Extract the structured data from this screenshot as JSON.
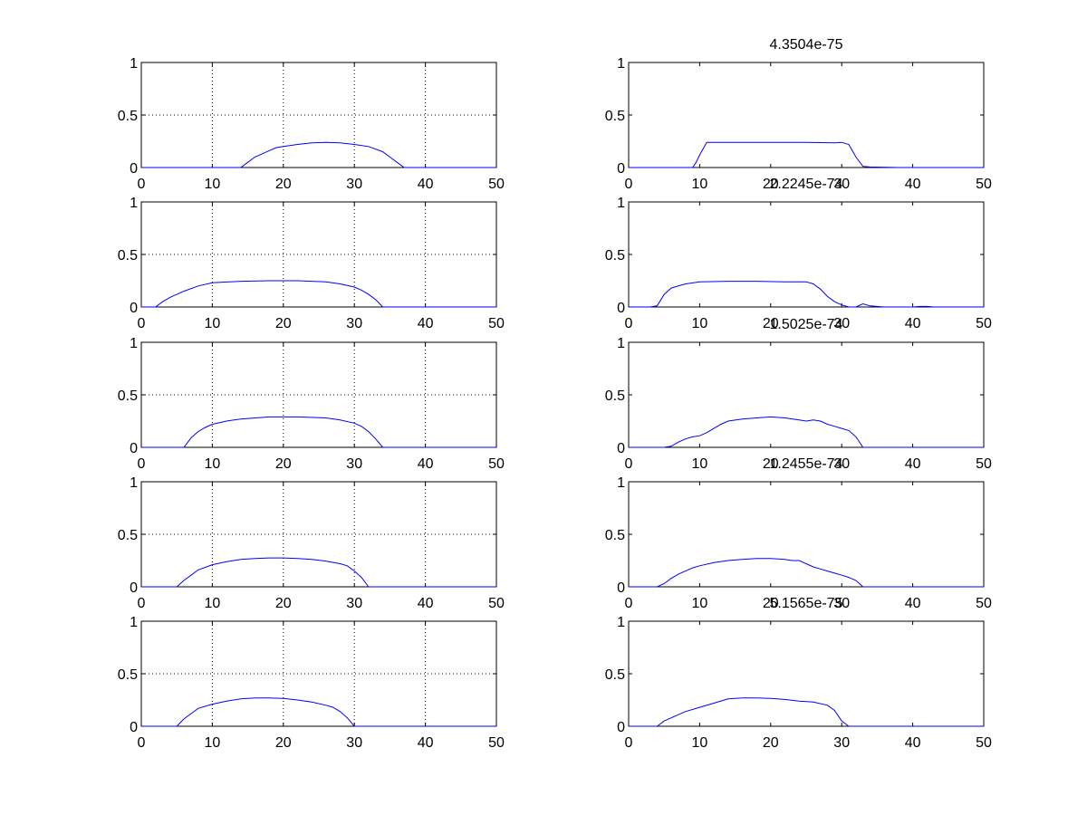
{
  "figure": {
    "background": "#ffffff",
    "line_color": "#0000ff",
    "axis_color": "#000000"
  },
  "chart_data": [
    {
      "type": "line",
      "title": "",
      "grid": true,
      "xlim": [
        0,
        50
      ],
      "ylim": [
        0,
        1
      ],
      "xticks": [
        "0",
        "10",
        "20",
        "30",
        "40",
        "50"
      ],
      "yticks": [
        "0",
        "0.5",
        "1"
      ],
      "series": [
        {
          "x": [
            0,
            13,
            14,
            15,
            16,
            17,
            18,
            19,
            20,
            22,
            24,
            26,
            28,
            30,
            32,
            34,
            35,
            36,
            37,
            50
          ],
          "y": [
            0,
            0,
            0,
            0.05,
            0.1,
            0.13,
            0.16,
            0.19,
            0.2,
            0.22,
            0.235,
            0.24,
            0.235,
            0.22,
            0.2,
            0.15,
            0.1,
            0.05,
            0,
            0
          ]
        }
      ]
    },
    {
      "type": "line",
      "title": "4.3504e-75",
      "grid": false,
      "xlim": [
        0,
        50
      ],
      "ylim": [
        0,
        1
      ],
      "xticks": [
        "0",
        "10",
        "20",
        "30",
        "40",
        "50"
      ],
      "yticks": [
        "0",
        "0.5",
        "1"
      ],
      "series": [
        {
          "x": [
            0,
            9,
            9.5,
            10,
            11,
            15,
            20,
            25,
            29,
            30,
            31,
            32,
            33,
            34,
            38,
            50
          ],
          "y": [
            0,
            0,
            0.05,
            0.12,
            0.24,
            0.24,
            0.24,
            0.24,
            0.235,
            0.24,
            0.22,
            0.1,
            0.01,
            0.005,
            0,
            0
          ]
        }
      ]
    },
    {
      "type": "line",
      "title": "",
      "grid": true,
      "xlim": [
        0,
        50
      ],
      "ylim": [
        0,
        1
      ],
      "xticks": [
        "0",
        "10",
        "20",
        "30",
        "40",
        "50"
      ],
      "yticks": [
        "0",
        "0.5",
        "1"
      ],
      "series": [
        {
          "x": [
            0,
            2,
            3,
            4,
            6,
            8,
            10,
            14,
            18,
            22,
            26,
            28,
            30,
            31,
            32,
            33,
            34,
            50
          ],
          "y": [
            0,
            0,
            0.05,
            0.09,
            0.15,
            0.2,
            0.23,
            0.245,
            0.25,
            0.25,
            0.24,
            0.22,
            0.19,
            0.16,
            0.12,
            0.07,
            0,
            0
          ]
        }
      ]
    },
    {
      "type": "line",
      "title": "2.2245e-74",
      "grid": false,
      "xlim": [
        0,
        50
      ],
      "ylim": [
        0,
        1
      ],
      "xticks": [
        "0",
        "10",
        "20",
        "30",
        "40",
        "50"
      ],
      "yticks": [
        "0",
        "0.5",
        "1"
      ],
      "series": [
        {
          "x": [
            0,
            3,
            4,
            5,
            6,
            8,
            10,
            14,
            18,
            22,
            25,
            26,
            27,
            28,
            29,
            30,
            31,
            32,
            33,
            34,
            35,
            36,
            40,
            41,
            42,
            43,
            50
          ],
          "y": [
            0,
            0,
            0.01,
            0.12,
            0.18,
            0.22,
            0.24,
            0.245,
            0.245,
            0.24,
            0.24,
            0.22,
            0.17,
            0.1,
            0.05,
            0.02,
            0,
            0,
            0.03,
            0.01,
            0.005,
            0,
            0,
            0.005,
            0.005,
            0,
            0
          ]
        }
      ]
    },
    {
      "type": "line",
      "title": "",
      "grid": true,
      "xlim": [
        0,
        50
      ],
      "ylim": [
        0,
        1
      ],
      "xticks": [
        "0",
        "10",
        "20",
        "30",
        "40",
        "50"
      ],
      "yticks": [
        "0",
        "0.5",
        "1"
      ],
      "series": [
        {
          "x": [
            0,
            6,
            7,
            8,
            9,
            10,
            12,
            14,
            18,
            22,
            26,
            28,
            30,
            31,
            32,
            33,
            34,
            50
          ],
          "y": [
            0,
            0,
            0.09,
            0.15,
            0.19,
            0.22,
            0.25,
            0.27,
            0.29,
            0.29,
            0.28,
            0.26,
            0.23,
            0.2,
            0.15,
            0.08,
            0,
            0
          ]
        }
      ]
    },
    {
      "type": "line",
      "title": "1.5025e-74",
      "grid": false,
      "xlim": [
        0,
        50
      ],
      "ylim": [
        0,
        1
      ],
      "xticks": [
        "0",
        "10",
        "20",
        "30",
        "40",
        "50"
      ],
      "yticks": [
        "0",
        "0.5",
        "1"
      ],
      "series": [
        {
          "x": [
            0,
            5,
            6,
            7,
            8,
            9,
            10,
            11,
            12,
            13,
            14,
            16,
            18,
            20,
            22,
            24,
            25,
            26,
            27,
            28,
            29,
            30,
            31,
            32,
            33,
            50
          ],
          "y": [
            0,
            0,
            0.01,
            0.05,
            0.08,
            0.1,
            0.11,
            0.14,
            0.18,
            0.22,
            0.25,
            0.27,
            0.28,
            0.29,
            0.28,
            0.26,
            0.25,
            0.26,
            0.25,
            0.22,
            0.2,
            0.18,
            0.16,
            0.1,
            0,
            0
          ]
        }
      ]
    },
    {
      "type": "line",
      "title": "",
      "grid": true,
      "xlim": [
        0,
        50
      ],
      "ylim": [
        0,
        1
      ],
      "xticks": [
        "0",
        "10",
        "20",
        "30",
        "40",
        "50"
      ],
      "yticks": [
        "0",
        "0.5",
        "1"
      ],
      "series": [
        {
          "x": [
            0,
            5,
            6,
            7,
            8,
            10,
            12,
            14,
            16,
            18,
            20,
            22,
            24,
            26,
            28,
            29,
            30,
            31,
            32,
            50
          ],
          "y": [
            0,
            0,
            0.06,
            0.11,
            0.16,
            0.21,
            0.24,
            0.26,
            0.27,
            0.275,
            0.275,
            0.27,
            0.26,
            0.245,
            0.22,
            0.2,
            0.15,
            0.09,
            0,
            0
          ]
        }
      ]
    },
    {
      "type": "line",
      "title": "1.2455e-74",
      "grid": false,
      "xlim": [
        0,
        50
      ],
      "ylim": [
        0,
        1
      ],
      "xticks": [
        "0",
        "10",
        "20",
        "30",
        "40",
        "50"
      ],
      "yticks": [
        "0",
        "0.5",
        "1"
      ],
      "series": [
        {
          "x": [
            0,
            4,
            5,
            6,
            7,
            8,
            9,
            10,
            12,
            14,
            16,
            18,
            20,
            22,
            23,
            24,
            25,
            26,
            27,
            28,
            29,
            30,
            31,
            32,
            33,
            50
          ],
          "y": [
            0,
            0,
            0.03,
            0.08,
            0.12,
            0.15,
            0.18,
            0.2,
            0.23,
            0.25,
            0.26,
            0.27,
            0.27,
            0.26,
            0.25,
            0.25,
            0.22,
            0.19,
            0.17,
            0.15,
            0.13,
            0.11,
            0.09,
            0.06,
            0,
            0
          ]
        }
      ]
    },
    {
      "type": "line",
      "title": "",
      "grid": true,
      "xlim": [
        0,
        50
      ],
      "ylim": [
        0,
        1
      ],
      "xticks": [
        "0",
        "10",
        "20",
        "30",
        "40",
        "50"
      ],
      "yticks": [
        "0",
        "0.5",
        "1"
      ],
      "series": [
        {
          "x": [
            0,
            5,
            6,
            7,
            8,
            10,
            12,
            14,
            16,
            18,
            20,
            22,
            24,
            26,
            27,
            28,
            29,
            30,
            50
          ],
          "y": [
            0,
            0,
            0.07,
            0.12,
            0.17,
            0.21,
            0.24,
            0.26,
            0.27,
            0.27,
            0.265,
            0.25,
            0.23,
            0.2,
            0.18,
            0.14,
            0.08,
            0,
            0
          ]
        }
      ]
    },
    {
      "type": "line",
      "title": "5.1565e-75",
      "grid": false,
      "xlim": [
        0,
        50
      ],
      "ylim": [
        0,
        1
      ],
      "xticks": [
        "0",
        "10",
        "20",
        "30",
        "40",
        "50"
      ],
      "yticks": [
        "0",
        "0.5",
        "1"
      ],
      "series": [
        {
          "x": [
            0,
            4,
            5,
            6,
            7,
            8,
            10,
            12,
            14,
            16,
            18,
            20,
            22,
            24,
            26,
            28,
            29,
            30,
            31,
            50
          ],
          "y": [
            0,
            0,
            0.05,
            0.08,
            0.11,
            0.14,
            0.18,
            0.22,
            0.26,
            0.27,
            0.27,
            0.265,
            0.255,
            0.24,
            0.23,
            0.2,
            0.15,
            0.05,
            0,
            0
          ]
        }
      ]
    }
  ]
}
